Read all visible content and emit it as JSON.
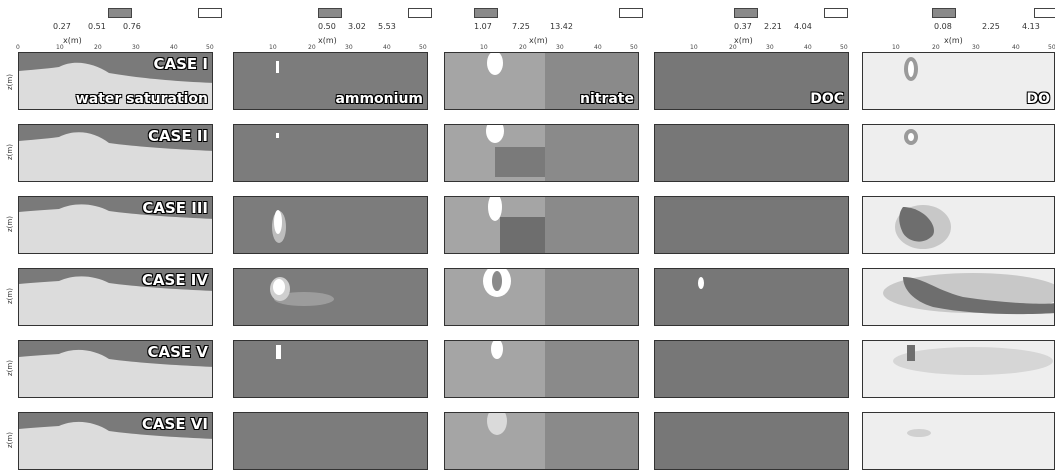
{
  "columns": [
    {
      "variable": "water saturation",
      "cb_values": [
        "0.27",
        "0.51",
        "0.76"
      ],
      "xlabel": "x(m)"
    },
    {
      "variable": "ammonium",
      "cb_values": [
        "0.50",
        "3.02",
        "5.53"
      ],
      "xlabel": "x(m)"
    },
    {
      "variable": "nitrate",
      "cb_values": [
        "1.07",
        "7.25",
        "13.42"
      ],
      "xlabel": "x(m)"
    },
    {
      "variable": "DOC",
      "cb_values": [
        "0.37",
        "2.21",
        "4.04"
      ],
      "xlabel": "x(m)"
    },
    {
      "variable": "DO",
      "cb_values": [
        "0.08",
        "2.25",
        "4.13"
      ],
      "xlabel": "x(m)"
    }
  ],
  "xticks": [
    "0",
    "10",
    "20",
    "30",
    "40",
    "50"
  ],
  "ylabel": "z(m)",
  "ytick": "-5",
  "cases": [
    "CASE I",
    "CASE II",
    "CASE III",
    "CASE IV",
    "CASE V",
    "CASE VI"
  ],
  "colors": {
    "dark": "#6b6b6b",
    "mid": "#9a9a9a",
    "light": "#d8d8d8",
    "white": "#ffffff"
  }
}
